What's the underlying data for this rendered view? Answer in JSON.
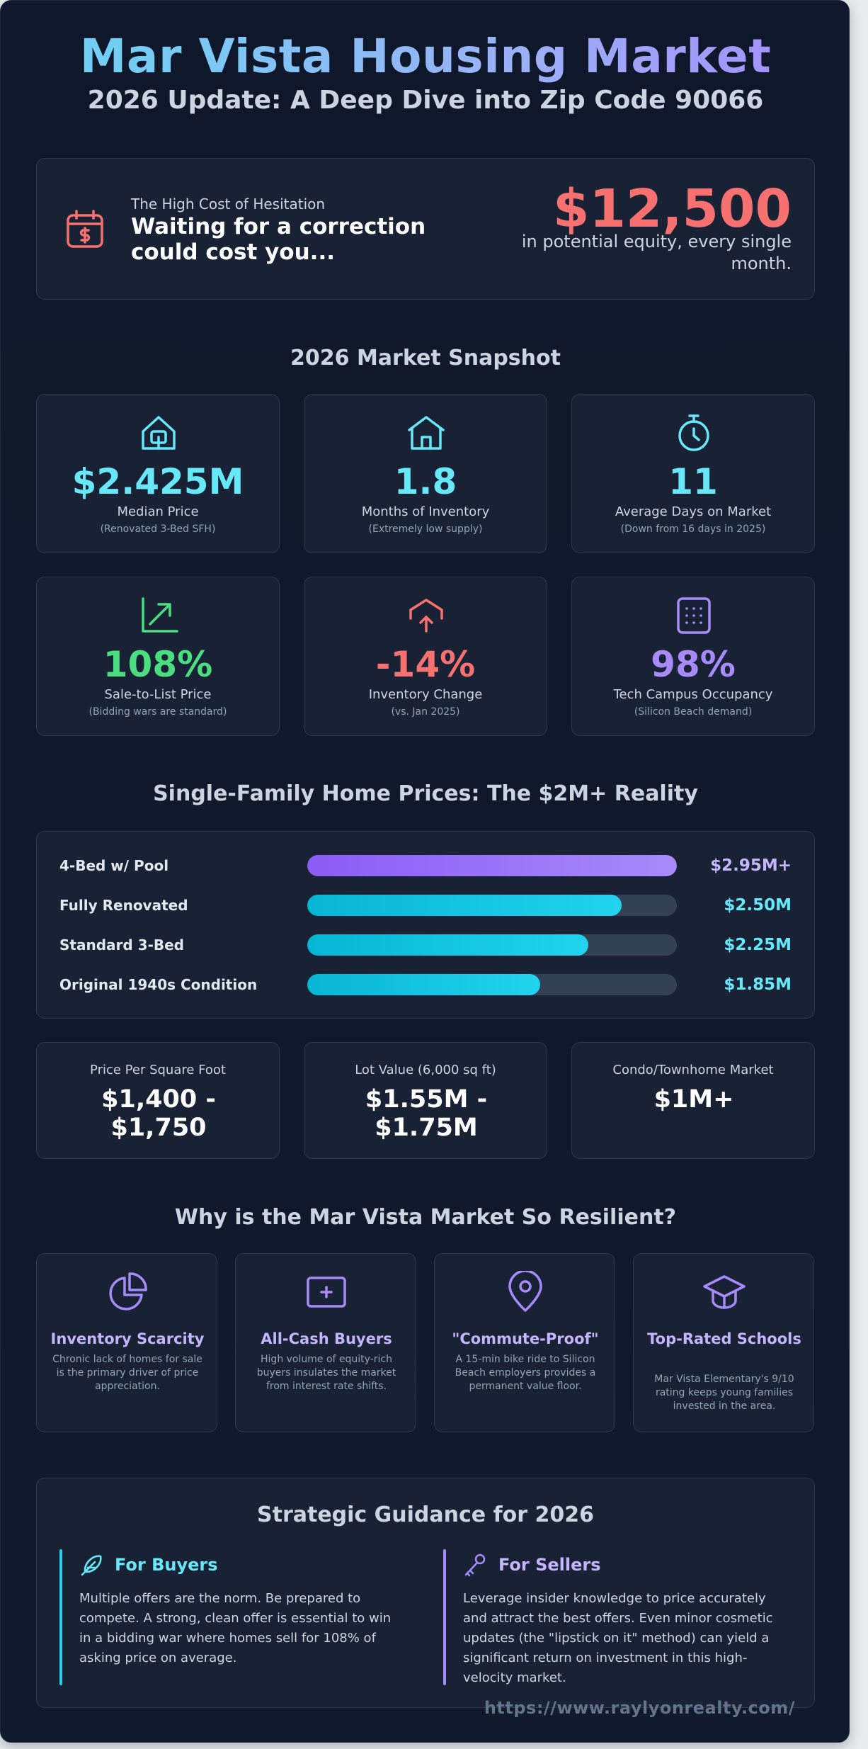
{
  "header": {
    "title": "Mar Vista Housing Market",
    "subtitle": "2026 Update: A Deep Dive into Zip Code 90066"
  },
  "hero": {
    "icon": "calendar-icon",
    "kicker": "The High Cost of Hesitation",
    "headline": "Waiting for a correction could cost you...",
    "amount": "$12,500",
    "note": "in potential equity, every single month."
  },
  "snapshot": {
    "title": "2026 Market Snapshot",
    "stats": [
      {
        "icon": "house-dollar-icon",
        "value": "$2.425M",
        "label": "Median Price",
        "sub": "(Renovated 3-Bed SFH)",
        "color": "#67e8f9"
      },
      {
        "icon": "house-icon",
        "value": "1.8",
        "label": "Months of Inventory",
        "sub": "(Extremely low supply)",
        "color": "#67e8f9"
      },
      {
        "icon": "stopwatch-icon",
        "value": "11",
        "label": "Average Days on Market",
        "sub": "(Down from 16 days in 2025)",
        "color": "#67e8f9"
      },
      {
        "icon": "trend-up-icon",
        "value": "108%",
        "label": "Sale-to-List Price",
        "sub": "(Bidding wars are standard)",
        "color": "#4ade80"
      },
      {
        "icon": "house-arrow-icon",
        "value": "-14%",
        "label": "Inventory Change",
        "sub": "(vs. Jan 2025)",
        "color": "#f87171"
      },
      {
        "icon": "building-grid-icon",
        "value": "98%",
        "label": "Tech Campus Occupancy",
        "sub": "(Silicon Beach demand)",
        "color": "#a78bfa"
      }
    ]
  },
  "prices": {
    "title": "Single-Family Home Prices: The $2M+ Reality",
    "bars": [
      {
        "label": "4-Bed w/ Pool",
        "value": "$2.95M+",
        "fill": 1.0,
        "accent": "purple"
      },
      {
        "label": "Fully Renovated",
        "value": "$2.50M",
        "fill": 0.85,
        "accent": "cyan"
      },
      {
        "label": "Standard 3-Bed",
        "value": "$2.25M",
        "fill": 0.76,
        "accent": "cyan"
      },
      {
        "label": "Original 1940s Condition",
        "value": "$1.85M",
        "fill": 0.63,
        "accent": "cyan"
      }
    ],
    "cards": [
      {
        "label": "Price Per Square Foot",
        "value": "$1,400 - $1,750"
      },
      {
        "label": "Lot Value (6,000 sq ft)",
        "value": "$1.55M - $1.75M"
      },
      {
        "label": "Condo/Townhome Market",
        "value": "$1M+"
      }
    ]
  },
  "why": {
    "title": "Why is the Mar Vista Market So Resilient?",
    "items": [
      {
        "icon": "pie-chart-icon",
        "title": "Inventory Scarcity",
        "desc": "Chronic lack of homes for sale is the primary driver of price appreciation."
      },
      {
        "icon": "cash-icon",
        "title": "All-Cash Buyers",
        "desc": "High volume of equity-rich buyers insulates the market from interest rate shifts."
      },
      {
        "icon": "map-pin-icon",
        "title": "\"Commute-Proof\"",
        "desc": "A 15-min bike ride to Silicon Beach employers provides a permanent value floor."
      },
      {
        "icon": "graduation-cap-icon",
        "title": "Top-Rated Schools",
        "desc": "Mar Vista Elementary's 9/10 rating keeps young families invested in the area."
      }
    ]
  },
  "guidance": {
    "title": "Strategic Guidance for 2026",
    "buyers": {
      "icon": "feather-icon",
      "heading": "For Buyers",
      "text": "Multiple offers are the norm. Be prepared to compete. A strong, clean offer is essential to win in a bidding war where homes sell for 108% of asking price on average."
    },
    "sellers": {
      "icon": "key-icon",
      "heading": "For Sellers",
      "text": "Leverage insider knowledge to price accurately and attract the best offers. Even minor cosmetic updates (the \"lipstick on it\" method) can yield a significant return on investment in this high-velocity market."
    }
  },
  "footer": {
    "url": "https://www.raylyonrealty.com/"
  },
  "colors": {
    "background": "#0f172a",
    "card": "#182234",
    "cyan": "#67e8f9",
    "purple": "#a78bfa",
    "green": "#4ade80",
    "red": "#f87171"
  }
}
